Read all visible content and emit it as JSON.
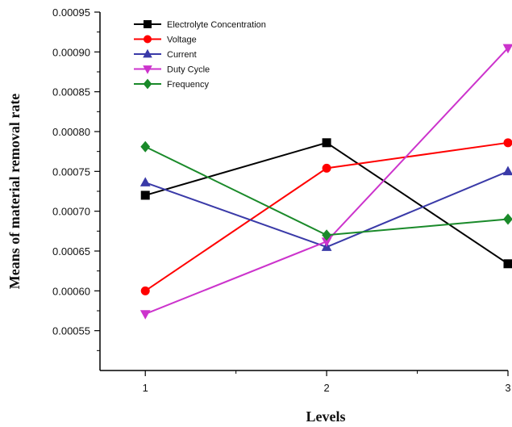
{
  "chart_data": {
    "type": "line",
    "xlabel": "Levels",
    "ylabel": "Means of material removal rate",
    "x": [
      1,
      2,
      3
    ],
    "x_ticks": [
      "1",
      "2",
      "3"
    ],
    "xlim": [
      0.75,
      3.0
    ],
    "ylim": [
      0.0005,
      0.00095
    ],
    "y_ticks": [
      "0.00055",
      "0.00060",
      "0.00065",
      "0.00070",
      "0.00075",
      "0.00080",
      "0.00085",
      "0.00090",
      "0.00095"
    ],
    "legend_position": "top-left",
    "grid": false,
    "series": [
      {
        "name": "Electrolyte Concentration",
        "color": "#000000",
        "marker": "square",
        "values": [
          0.00072,
          0.000786,
          0.000634
        ]
      },
      {
        "name": "Voltage",
        "color": "#ff0000",
        "marker": "circle",
        "values": [
          0.0006,
          0.000754,
          0.000786
        ]
      },
      {
        "name": "Current",
        "color": "#3a3aa8",
        "marker": "triangle-up",
        "values": [
          0.000736,
          0.000655,
          0.00075
        ]
      },
      {
        "name": "Duty Cycle",
        "color": "#cc33cc",
        "marker": "triangle-down",
        "values": [
          0.000571,
          0.000662,
          0.000905
        ]
      },
      {
        "name": "Frequency",
        "color": "#1a8a2a",
        "marker": "diamond",
        "values": [
          0.000781,
          0.00067,
          0.00069
        ]
      }
    ]
  }
}
